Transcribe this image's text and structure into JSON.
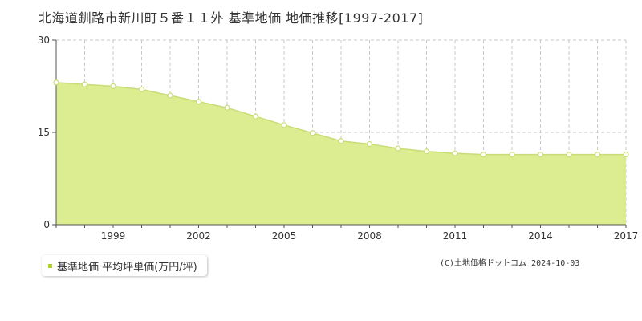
{
  "title": "北海道釧路市新川町５番１１外 基準地価 地価推移[1997-2017]",
  "chart_data": {
    "type": "area",
    "x": [
      1997,
      1998,
      1999,
      2000,
      2001,
      2002,
      2003,
      2004,
      2005,
      2006,
      2007,
      2008,
      2009,
      2010,
      2011,
      2012,
      2013,
      2014,
      2015,
      2016,
      2017
    ],
    "series": [
      {
        "name": "基準地価 平均坪単価(万円/坪)",
        "values": [
          23.1,
          22.8,
          22.5,
          22.0,
          21.0,
          20.0,
          19.0,
          17.6,
          16.2,
          14.9,
          13.6,
          13.1,
          12.4,
          11.9,
          11.6,
          11.4,
          11.4,
          11.4,
          11.4,
          11.4,
          11.4
        ]
      }
    ],
    "xlim": [
      1997,
      2017
    ],
    "ylim": [
      0,
      30
    ],
    "y_ticks": [
      "0",
      "15",
      "30"
    ],
    "x_ticks": [
      "1999",
      "2002",
      "2005",
      "2008",
      "2011",
      "2014",
      "2017"
    ],
    "grid": true,
    "legend_position": "bottom-left"
  },
  "colors": {
    "fill": "#dcec90",
    "line": "#c8dc78",
    "marker_fill": "#ffffff",
    "legend_marker": "#b0d030",
    "grid": "#c8c8c8"
  },
  "legend": {
    "label": "基準地価 平均坪単価(万円/坪)"
  },
  "copyright": "(C)土地価格ドットコム 2024-10-03"
}
